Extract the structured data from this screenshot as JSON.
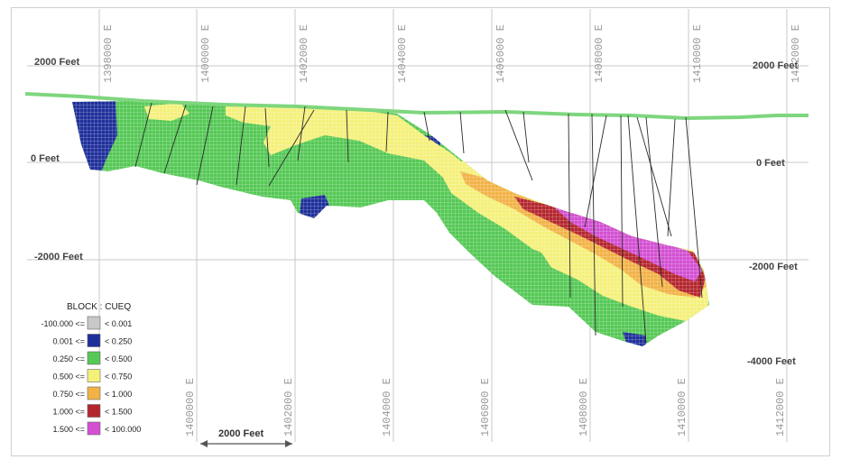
{
  "elevation_labels": {
    "left": [
      "2000 Feet",
      "0 Feet",
      "-2000 Feet"
    ],
    "right": [
      "2000 Feet",
      "0 Feet",
      "-2000 Feet",
      "-4000 Feet"
    ]
  },
  "easting_labels_top": [
    "1398000 E",
    "1400000 E",
    "1402000 E",
    "1404000 E",
    "1406000 E",
    "1408000 E",
    "1410000 E",
    "1412000 E"
  ],
  "easting_labels_bottom": [
    "1400000 E",
    "1402000 E",
    "1404000 E",
    "1406000 E",
    "1408000 E",
    "1410000 E",
    "1412000 E"
  ],
  "legend": {
    "title": "BLOCK : CUEQ",
    "items": [
      {
        "low": "-100.000 <=",
        "high": "< 0.001",
        "color": "#c8c8c8"
      },
      {
        "low": "0.001 <=",
        "high": "< 0.250",
        "color": "#1f2f9a"
      },
      {
        "low": "0.250 <=",
        "high": "< 0.500",
        "color": "#55c855"
      },
      {
        "low": "0.500 <=",
        "high": "< 0.750",
        "color": "#f4f07a"
      },
      {
        "low": "0.750 <=",
        "high": "< 1.000",
        "color": "#f2b246"
      },
      {
        "low": "1.000 <=",
        "high": "< 1.500",
        "color": "#b4262e"
      },
      {
        "low": "1.500 <=",
        "high": "< 100.000",
        "color": "#d24fd2"
      }
    ]
  },
  "scale_bar": {
    "label": "2000 Feet"
  },
  "colors": {
    "topography": "#7ed67e",
    "grid_line": "#c9c9c9",
    "drill_hole": "#2a2a2a"
  }
}
